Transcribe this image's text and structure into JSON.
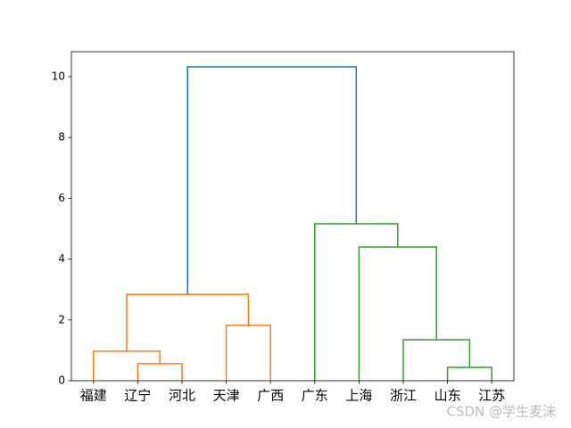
{
  "chart_data": {
    "type": "dendrogram",
    "categories": [
      "福建",
      "辽宁",
      "河北",
      "天津",
      "广西",
      "广东",
      "上海",
      "浙江",
      "山东",
      "江苏"
    ],
    "links": [
      {
        "left": 1,
        "right": 2,
        "height": 0.56,
        "color": "#ff7f0e"
      },
      {
        "left": 8,
        "right": 9,
        "height": 0.44,
        "color": "#2ca02c"
      },
      {
        "left": 0,
        "right": 10,
        "height": 0.97,
        "color": "#ff7f0e"
      },
      {
        "left": 7,
        "right": 11,
        "height": 1.35,
        "color": "#2ca02c"
      },
      {
        "left": 3,
        "right": 4,
        "height": 1.82,
        "color": "#ff7f0e"
      },
      {
        "left": 12,
        "right": 14,
        "height": 2.84,
        "color": "#ff7f0e"
      },
      {
        "left": 6,
        "right": 13,
        "height": 4.4,
        "color": "#2ca02c"
      },
      {
        "left": 5,
        "right": 16,
        "height": 5.16,
        "color": "#2ca02c"
      },
      {
        "left": 15,
        "right": 17,
        "height": 10.32,
        "color": "#1f77b4"
      }
    ],
    "ylim": [
      0,
      10.82
    ],
    "yticks": [
      0,
      2,
      4,
      6,
      8,
      10
    ]
  },
  "watermark": "CSDN @学生麦沫"
}
